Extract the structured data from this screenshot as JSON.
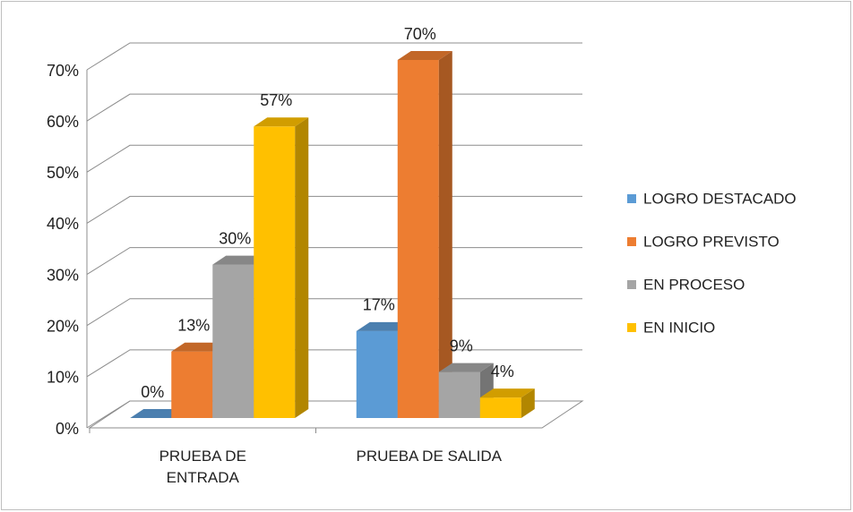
{
  "chart_data": {
    "type": "bar3d",
    "categories": [
      "PRUEBA DE ENTRADA",
      "PRUEBA DE SALIDA"
    ],
    "series": [
      {
        "name": "LOGRO DESTACADO",
        "color": "#5b9bd5",
        "values": [
          0,
          17
        ],
        "value_labels": [
          "0%",
          "17%"
        ]
      },
      {
        "name": "LOGRO PREVISTO",
        "color": "#ed7d31",
        "values": [
          13,
          70
        ],
        "value_labels": [
          "13%",
          "70%"
        ]
      },
      {
        "name": "EN PROCESO",
        "color": "#a5a5a5",
        "values": [
          30,
          9
        ],
        "value_labels": [
          "30%",
          "9%"
        ]
      },
      {
        "name": "EN INICIO",
        "color": "#ffc000",
        "values": [
          57,
          4
        ],
        "value_labels": [
          "57%",
          "4%"
        ]
      }
    ],
    "ylim": [
      0,
      70
    ],
    "yticks": [
      {
        "value": 0,
        "label": "0%"
      },
      {
        "value": 10,
        "label": "10%"
      },
      {
        "value": 20,
        "label": "20%"
      },
      {
        "value": 30,
        "label": "30%"
      },
      {
        "value": 40,
        "label": "40%"
      },
      {
        "value": 50,
        "label": "50%"
      },
      {
        "value": 60,
        "label": "60%"
      },
      {
        "value": 70,
        "label": "70%"
      }
    ],
    "grid": true,
    "legend": "right"
  }
}
